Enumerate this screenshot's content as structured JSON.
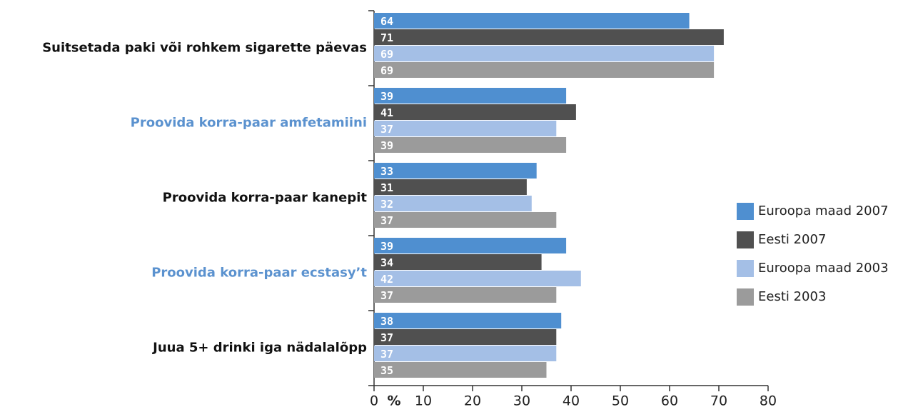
{
  "chart_data": {
    "type": "hbar",
    "categories": [
      "Suitsetada paki või rohkem sigarette päevas",
      "Proovida korra-paar amfetamiini",
      "Proovida korra-paar kanepit",
      "Proovida korra-paar ecstasy’t",
      "Juua 5+ drinki iga nädalalõpp"
    ],
    "category_label_colors": [
      "#111111",
      "#5b92cf",
      "#111111",
      "#5b92cf",
      "#111111"
    ],
    "series": [
      {
        "name": "Euroopa maad 2007",
        "color": "#4f8fd0",
        "values": [
          64,
          39,
          33,
          39,
          38
        ]
      },
      {
        "name": "Eesti 2007",
        "color": "#505050",
        "values": [
          71,
          41,
          31,
          34,
          37
        ]
      },
      {
        "name": "Euroopa maad 2003",
        "color": "#a4bfe6",
        "values": [
          69,
          37,
          32,
          42,
          37
        ]
      },
      {
        "name": "Eesti 2003",
        "color": "#9b9b9b",
        "values": [
          69,
          39,
          37,
          37,
          35
        ]
      }
    ],
    "xlabel": "%",
    "xlim": [
      0,
      80
    ],
    "xticks": [
      0,
      10,
      20,
      30,
      40,
      50,
      60,
      70,
      80
    ],
    "legend": "right"
  }
}
